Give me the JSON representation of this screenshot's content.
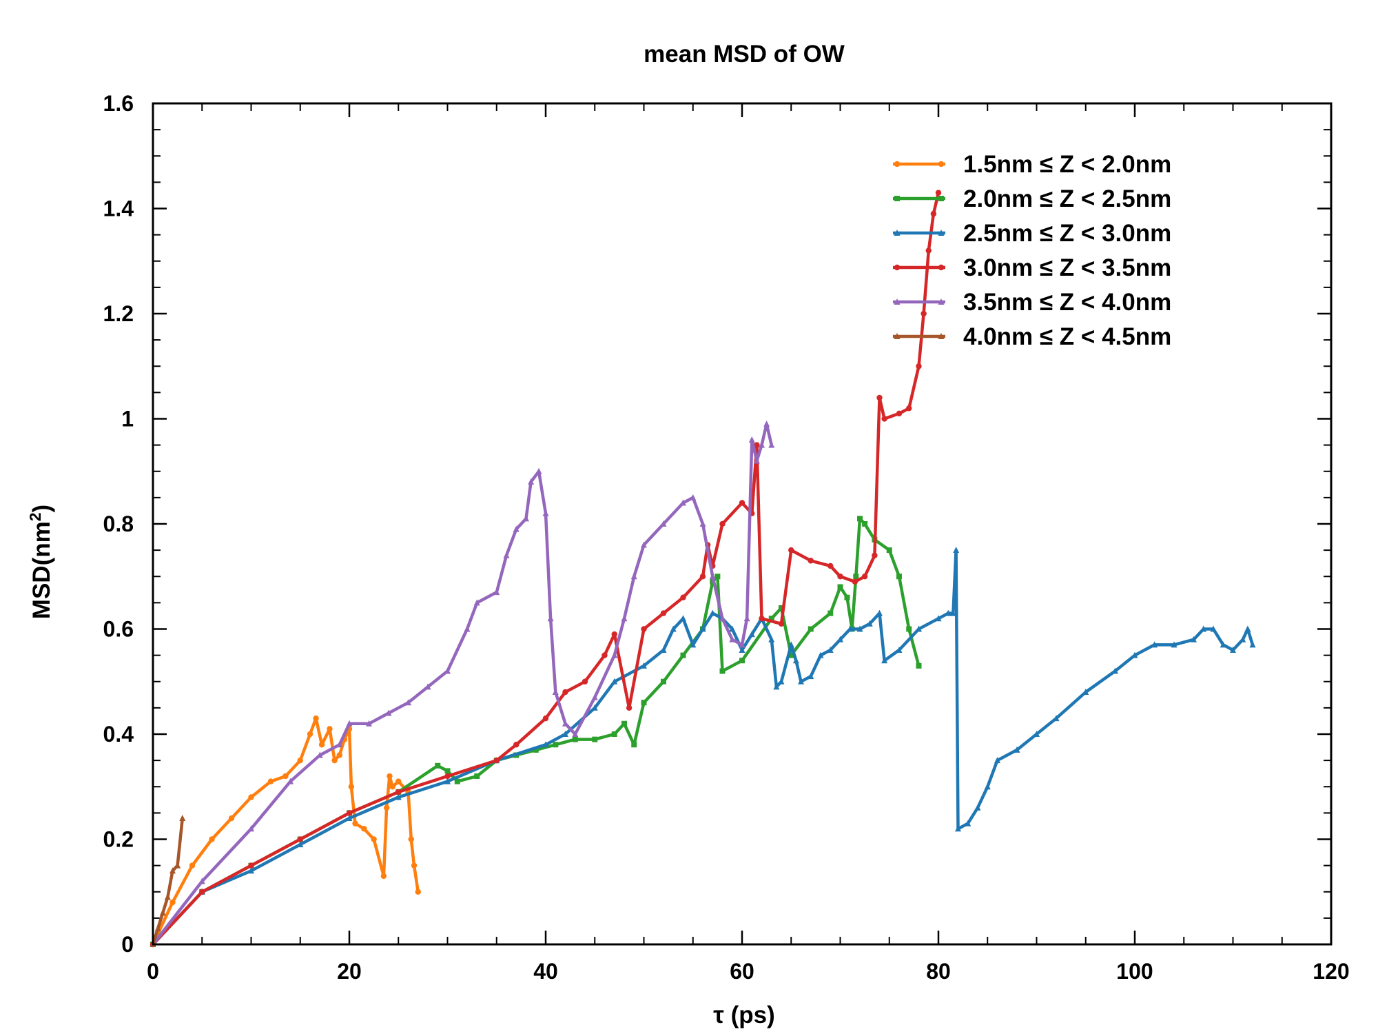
{
  "chart_data": {
    "type": "line",
    "title": "mean MSD of OW",
    "xlabel": "τ (ps)",
    "ylabel_main": "MSD(nm",
    "ylabel_sup": "2",
    "ylabel_close": ")",
    "xlim": [
      0,
      120
    ],
    "ylim": [
      0,
      1.6
    ],
    "x_ticks": [
      0,
      20,
      40,
      60,
      80,
      100,
      120
    ],
    "x_tick_labels": [
      "0",
      "20",
      "40",
      "60",
      "80",
      "100",
      "120"
    ],
    "y_ticks": [
      0,
      0.2,
      0.4,
      0.6,
      0.8,
      1.0,
      1.2,
      1.4,
      1.6
    ],
    "y_tick_labels": [
      "0",
      "0.2",
      "0.4",
      "0.6",
      "0.8",
      "1",
      "1.2",
      "1.4",
      "1.6"
    ],
    "grid": false,
    "legend_position": "top-right",
    "series": [
      {
        "name": "1.5nm ≤ Z < 2.0nm",
        "color": "#ff7f0e",
        "marker": "circle",
        "x": [
          0,
          2,
          4,
          6,
          8,
          10,
          12,
          13.5,
          15,
          16,
          16.6,
          17.2,
          18,
          18.5,
          19,
          19.5,
          20,
          20.2,
          20.6,
          21.5,
          22.5,
          23.5,
          23.8,
          24.1,
          24.4,
          25,
          26,
          26.3,
          26.6,
          27
        ],
        "y": [
          0,
          0.08,
          0.15,
          0.2,
          0.24,
          0.28,
          0.31,
          0.32,
          0.35,
          0.4,
          0.43,
          0.38,
          0.41,
          0.35,
          0.36,
          0.39,
          0.41,
          0.3,
          0.23,
          0.22,
          0.2,
          0.13,
          0.26,
          0.32,
          0.3,
          0.31,
          0.29,
          0.2,
          0.15,
          0.1
        ]
      },
      {
        "name": "2.0nm ≤ Z < 2.5nm",
        "color": "#2ca02c",
        "marker": "square",
        "x": [
          0,
          5,
          10,
          15,
          20,
          25,
          29,
          30,
          31,
          33,
          35,
          37,
          39,
          41,
          43,
          45,
          47,
          48,
          49,
          50,
          52,
          54,
          56,
          57,
          57.5,
          58,
          60,
          63,
          64,
          65,
          67,
          69,
          70,
          70.7,
          71.2,
          71.6,
          72,
          72.5,
          73.5,
          75,
          76,
          77,
          78
        ],
        "y": [
          0,
          0.1,
          0.15,
          0.2,
          0.25,
          0.29,
          0.34,
          0.33,
          0.31,
          0.32,
          0.35,
          0.36,
          0.37,
          0.38,
          0.39,
          0.39,
          0.4,
          0.42,
          0.38,
          0.46,
          0.5,
          0.55,
          0.6,
          0.69,
          0.7,
          0.52,
          0.54,
          0.62,
          0.64,
          0.55,
          0.6,
          0.63,
          0.68,
          0.66,
          0.6,
          0.7,
          0.81,
          0.8,
          0.77,
          0.75,
          0.7,
          0.6,
          0.53
        ]
      },
      {
        "name": "2.5nm ≤ Z < 3.0nm",
        "color": "#1f77b4",
        "marker": "triangle",
        "x": [
          0,
          5,
          10,
          15,
          20,
          25,
          30,
          35,
          40,
          42,
          45,
          47,
          50,
          52,
          53,
          54,
          55,
          56,
          57,
          58,
          59,
          60,
          61,
          62,
          63,
          63.5,
          64,
          65,
          65.5,
          66,
          67,
          68,
          69,
          70,
          71,
          72,
          73,
          74,
          74.5,
          76,
          78,
          80,
          81,
          81.5,
          81.8,
          82,
          83,
          84,
          85,
          86,
          88,
          90,
          92,
          95,
          98,
          100,
          102,
          104,
          106,
          107,
          108,
          109,
          110,
          111,
          111.5,
          112
        ],
        "y": [
          0,
          0.1,
          0.14,
          0.19,
          0.24,
          0.28,
          0.31,
          0.35,
          0.38,
          0.4,
          0.45,
          0.5,
          0.53,
          0.56,
          0.6,
          0.62,
          0.57,
          0.6,
          0.63,
          0.62,
          0.6,
          0.56,
          0.59,
          0.62,
          0.58,
          0.49,
          0.5,
          0.57,
          0.54,
          0.5,
          0.51,
          0.55,
          0.56,
          0.58,
          0.6,
          0.6,
          0.61,
          0.63,
          0.54,
          0.56,
          0.6,
          0.62,
          0.63,
          0.63,
          0.75,
          0.22,
          0.23,
          0.26,
          0.3,
          0.35,
          0.37,
          0.4,
          0.43,
          0.48,
          0.52,
          0.55,
          0.57,
          0.57,
          0.58,
          0.6,
          0.6,
          0.57,
          0.56,
          0.58,
          0.6,
          0.57
        ]
      },
      {
        "name": "3.0nm ≤ Z < 3.5nm",
        "color": "#d62728",
        "marker": "circle",
        "x": [
          0,
          5,
          10,
          15,
          20,
          25,
          30,
          35,
          37,
          40,
          42,
          44,
          46,
          47,
          48.5,
          50,
          52,
          54,
          56,
          56.5,
          57,
          58,
          60,
          61,
          61.5,
          62,
          64,
          65,
          67,
          69,
          70,
          71.5,
          72.5,
          73.5,
          74,
          74.5,
          76,
          77,
          78,
          78.5,
          79,
          79.5,
          80
        ],
        "y": [
          0,
          0.1,
          0.15,
          0.2,
          0.25,
          0.29,
          0.32,
          0.35,
          0.38,
          0.43,
          0.48,
          0.5,
          0.55,
          0.59,
          0.45,
          0.6,
          0.63,
          0.66,
          0.7,
          0.76,
          0.72,
          0.8,
          0.84,
          0.82,
          0.95,
          0.62,
          0.61,
          0.75,
          0.73,
          0.72,
          0.7,
          0.69,
          0.7,
          0.74,
          1.04,
          1.0,
          1.01,
          1.02,
          1.1,
          1.2,
          1.32,
          1.39,
          1.43
        ]
      },
      {
        "name": "3.5nm ≤ Z < 4.0nm",
        "color": "#9467bd",
        "marker": "triangle",
        "x": [
          0,
          5,
          10,
          14,
          17,
          19,
          20,
          22,
          24,
          26,
          28,
          30,
          32,
          33,
          35,
          36,
          37,
          38,
          38.5,
          39.3,
          40,
          40.5,
          41,
          42,
          43,
          45,
          47,
          48,
          49,
          50,
          52,
          54,
          55,
          56,
          57,
          58,
          59,
          60,
          60.5,
          61,
          61.5,
          62,
          62.5,
          63
        ],
        "y": [
          0,
          0.12,
          0.22,
          0.31,
          0.36,
          0.38,
          0.42,
          0.42,
          0.44,
          0.46,
          0.49,
          0.52,
          0.6,
          0.65,
          0.67,
          0.74,
          0.79,
          0.81,
          0.88,
          0.9,
          0.82,
          0.62,
          0.48,
          0.42,
          0.4,
          0.47,
          0.55,
          0.62,
          0.7,
          0.76,
          0.8,
          0.84,
          0.85,
          0.8,
          0.7,
          0.62,
          0.58,
          0.57,
          0.62,
          0.96,
          0.92,
          0.95,
          0.99,
          0.95
        ]
      },
      {
        "name": "4.0nm ≤ Z < 4.5nm",
        "color": "#a65628",
        "marker": "triangle",
        "x": [
          0,
          0.5,
          1,
          1.5,
          2,
          2.5,
          3
        ],
        "y": [
          0,
          0.03,
          0.06,
          0.09,
          0.14,
          0.15,
          0.24
        ]
      }
    ]
  }
}
